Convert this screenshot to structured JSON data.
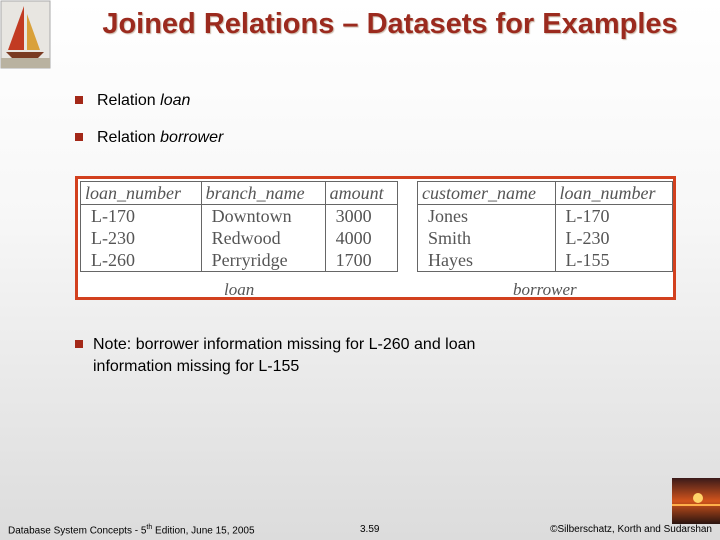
{
  "title": "Joined Relations – Datasets for Examples",
  "bullets": [
    {
      "prefix": "Relation",
      "term": "loan"
    },
    {
      "prefix": "Relation",
      "term": "borrower"
    }
  ],
  "tables": [
    {
      "columns": [
        "loan_number",
        "branch_name",
        "amount"
      ],
      "rows": [
        [
          "L-170",
          "Downtown",
          3000
        ],
        [
          "L-230",
          "Redwood",
          4000
        ],
        [
          "L-260",
          "Perryridge",
          1700
        ]
      ],
      "caption": "loan"
    },
    {
      "columns": [
        "customer_name",
        "loan_number"
      ],
      "rows": [
        [
          "Jones",
          "L-170"
        ],
        [
          "Smith",
          "L-230"
        ],
        [
          "Hayes",
          "L-155"
        ]
      ],
      "caption": "borrower"
    }
  ],
  "note": "Note: borrower information missing for L-260 and loan information missing for L-155",
  "footer": {
    "left": {
      "before": "Database System Concepts - 5",
      "sup": "th",
      "after": " Edition, June 15, 2005"
    },
    "page": "3.59",
    "right": "©Silberschatz, Korth and Sudarshan"
  }
}
